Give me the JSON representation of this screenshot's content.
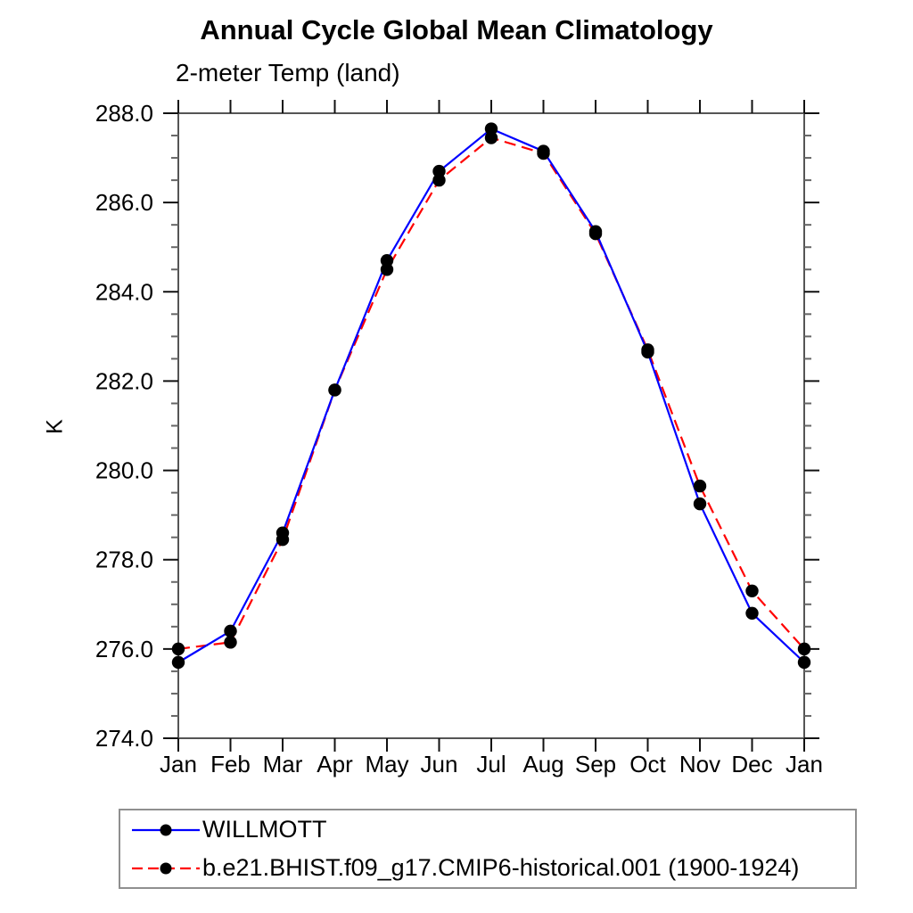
{
  "title": "Annual Cycle Global Mean Climatology",
  "subtitle": "2-meter Temp (land)",
  "ylabel": "K",
  "colors": {
    "willmott_line": "#0000ff",
    "model_line": "#ff0000",
    "marker": "#000000",
    "frame": "#555555",
    "major_tick": "#111111",
    "minor_tick": "#666666",
    "legend_border": "#8f8f8f"
  },
  "chart_data": {
    "type": "line",
    "title": "Annual Cycle Global Mean Climatology",
    "subtitle": "2-meter Temp (land)",
    "xlabel": "",
    "ylabel": "K",
    "categories": [
      "Jan",
      "Feb",
      "Mar",
      "Apr",
      "May",
      "Jun",
      "Jul",
      "Aug",
      "Sep",
      "Oct",
      "Nov",
      "Dec",
      "Jan"
    ],
    "ylim": [
      274.0,
      288.0
    ],
    "ytick_major_step": 2.0,
    "ytick_minor_step": 0.5,
    "ytick_labels": [
      "274.0",
      "276.0",
      "278.0",
      "280.0",
      "282.0",
      "284.0",
      "286.0",
      "288.0"
    ],
    "grid": false,
    "legend_position": "bottom-left",
    "marker": "filled-circle",
    "series": [
      {
        "name": "WILLMOTT",
        "color": "#0000ff",
        "style": "solid",
        "values": [
          275.7,
          276.4,
          278.6,
          281.8,
          284.7,
          286.7,
          287.65,
          287.15,
          285.35,
          282.65,
          279.25,
          276.8,
          275.7
        ]
      },
      {
        "name": "b.e21.BHIST.f09_g17.CMIP6-historical.001 (1900-1924)",
        "color": "#ff0000",
        "style": "dashed",
        "values": [
          276.0,
          276.15,
          278.45,
          281.8,
          284.5,
          286.5,
          287.45,
          287.1,
          285.3,
          282.7,
          279.65,
          277.3,
          276.0
        ]
      }
    ]
  }
}
